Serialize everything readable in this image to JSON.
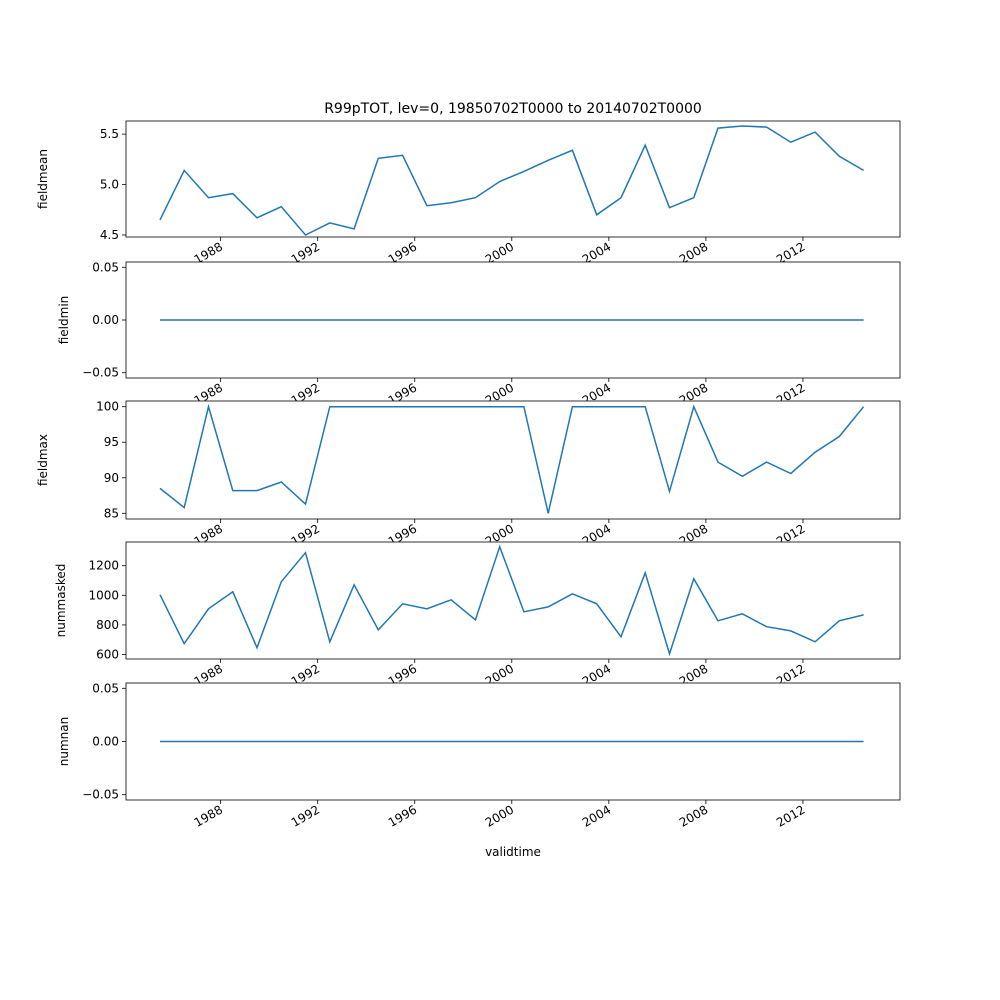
{
  "chart_data": [
    {
      "type": "line",
      "title": "R99pTOT, lev=0, 19850702T0000 to 20140702T0000",
      "ylabel": "fieldmean",
      "xlabel": "",
      "ylim": [
        4.48,
        5.63
      ],
      "yticks": [
        4.5,
        5.0,
        5.5
      ],
      "ytick_labels": [
        "4.5",
        "5.0",
        "5.5"
      ],
      "values": [
        4.65,
        5.14,
        4.87,
        4.91,
        4.67,
        4.78,
        4.5,
        4.62,
        4.56,
        5.26,
        5.29,
        4.79,
        4.82,
        4.87,
        5.03,
        5.13,
        5.24,
        5.34,
        4.7,
        4.87,
        5.39,
        4.77,
        4.87,
        5.56,
        5.58,
        5.57,
        5.42,
        5.52,
        5.28,
        5.14
      ]
    },
    {
      "type": "line",
      "title": "",
      "ylabel": "fieldmin",
      "xlabel": "",
      "ylim": [
        -0.055,
        0.055
      ],
      "yticks": [
        -0.05,
        0.0,
        0.05
      ],
      "ytick_labels": [
        "−0.05",
        "0.00",
        "0.05"
      ],
      "values": [
        0,
        0,
        0,
        0,
        0,
        0,
        0,
        0,
        0,
        0,
        0,
        0,
        0,
        0,
        0,
        0,
        0,
        0,
        0,
        0,
        0,
        0,
        0,
        0,
        0,
        0,
        0,
        0,
        0,
        0
      ]
    },
    {
      "type": "line",
      "title": "",
      "ylabel": "fieldmax",
      "xlabel": "",
      "ylim": [
        84.2,
        100.8
      ],
      "yticks": [
        85,
        90,
        95,
        100
      ],
      "ytick_labels": [
        "85",
        "90",
        "95",
        "100"
      ],
      "values": [
        88.5,
        85.8,
        100,
        88.2,
        88.2,
        89.4,
        86.3,
        100,
        100,
        100,
        100,
        100,
        100,
        100,
        100,
        100,
        85.0,
        100,
        100,
        100,
        100,
        88.1,
        100,
        92.2,
        90.2,
        92.2,
        90.6,
        93.6,
        95.8,
        100
      ]
    },
    {
      "type": "line",
      "title": "",
      "ylabel": "nummasked",
      "xlabel": "",
      "ylim": [
        570,
        1360
      ],
      "yticks": [
        600,
        800,
        1000,
        1200
      ],
      "ytick_labels": [
        "600",
        "800",
        "1000",
        "1200"
      ],
      "values": [
        1004,
        673,
        909,
        1024,
        646,
        1092,
        1288,
        686,
        1071,
        767,
        943,
        909,
        970,
        835,
        1328,
        889,
        922,
        1010,
        943,
        720,
        1152,
        605,
        1112,
        828,
        875,
        788,
        760,
        686,
        828,
        868
      ]
    },
    {
      "type": "line",
      "title": "",
      "ylabel": "numnan",
      "xlabel": "validtime",
      "ylim": [
        -0.055,
        0.055
      ],
      "yticks": [
        -0.05,
        0.0,
        0.05
      ],
      "ytick_labels": [
        "−0.05",
        "0.00",
        "0.05"
      ],
      "values": [
        0,
        0,
        0,
        0,
        0,
        0,
        0,
        0,
        0,
        0,
        0,
        0,
        0,
        0,
        0,
        0,
        0,
        0,
        0,
        0,
        0,
        0,
        0,
        0,
        0,
        0,
        0,
        0,
        0,
        0
      ]
    }
  ],
  "x": [
    1985.5,
    1986.5,
    1987.5,
    1988.5,
    1989.5,
    1990.5,
    1991.5,
    1992.5,
    1993.5,
    1994.5,
    1995.5,
    1996.5,
    1997.5,
    1998.5,
    1999.5,
    2000.5,
    2001.5,
    2002.5,
    2003.5,
    2004.5,
    2005.5,
    2006.5,
    2007.5,
    2008.5,
    2009.5,
    2010.5,
    2011.5,
    2012.5,
    2013.5,
    2014.5
  ],
  "xlim": [
    1984.1,
    2016.0
  ],
  "xticks": [
    1988,
    1992,
    1996,
    2000,
    2004,
    2008,
    2012
  ],
  "xtick_labels": [
    "1988",
    "1992",
    "1996",
    "2000",
    "2004",
    "2008",
    "2012"
  ],
  "line_color": "#1f77b4"
}
